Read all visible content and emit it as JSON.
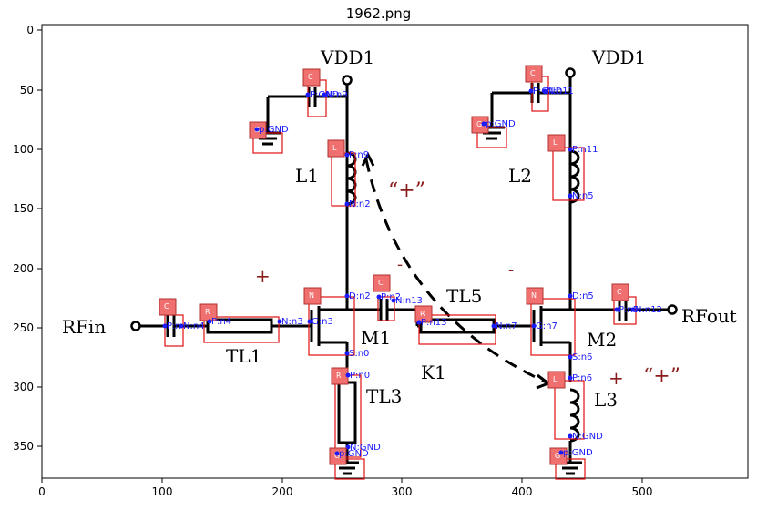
{
  "figure_title": "1962.png",
  "axis": {
    "x_ticks": [
      "0",
      "100",
      "200",
      "300",
      "400",
      "500"
    ],
    "y_ticks": [
      "0",
      "50",
      "100",
      "150",
      "200",
      "250",
      "300",
      "350"
    ]
  },
  "schematic": {
    "rails": [
      "VDD1",
      "VDD1"
    ],
    "ports": [
      "RFin",
      "RFout"
    ],
    "parts": [
      "L1",
      "L2",
      "L3",
      "TL1",
      "TL3",
      "TL5",
      "M1",
      "M2",
      "K1"
    ],
    "dot_marks": [
      "“+”",
      "“+”"
    ]
  },
  "annotations": [
    {
      "tag": "C",
      "pins": [
        "P:GND",
        "N:n9"
      ]
    },
    {
      "tag": "G",
      "pins": [
        "p:GND"
      ]
    },
    {
      "tag": "L",
      "pins": [
        "P:n9",
        "N:n2"
      ]
    },
    {
      "tag": "C",
      "pins": [
        "P:GND",
        "N:n11"
      ]
    },
    {
      "tag": "G",
      "pins": [
        "p:GND"
      ]
    },
    {
      "tag": "L",
      "pins": [
        "P:n11",
        "N:n5"
      ]
    },
    {
      "tag": "C",
      "pins": [
        "P:n",
        "N:n4"
      ]
    },
    {
      "tag": "R",
      "pins": [
        "P:n4",
        "N:n3"
      ]
    },
    {
      "tag": "N",
      "pins": [
        "D:n2",
        "G:n3",
        "S:n0"
      ]
    },
    {
      "tag": "C",
      "pins": [
        "P:n2",
        "N:n13"
      ]
    },
    {
      "tag": "R",
      "pins": [
        "P:n13",
        "N:n7"
      ]
    },
    {
      "tag": "N",
      "pins": [
        "D:n5",
        "G:n7",
        "S:n6"
      ]
    },
    {
      "tag": "C",
      "pins": [
        "P:n5",
        "N:n12"
      ]
    },
    {
      "tag": "R",
      "pins": [
        "P:n0",
        "N:GND"
      ]
    },
    {
      "tag": "G",
      "pins": [
        "p:GND"
      ]
    },
    {
      "tag": "L",
      "pins": [
        "P:n6",
        "N:GND"
      ]
    },
    {
      "tag": "G",
      "pins": [
        "p:GND"
      ]
    }
  ],
  "colors": {
    "box": "#e01010",
    "tag": "#f07070",
    "pin": "#1a1aff",
    "sign": "#8b1a1a"
  }
}
